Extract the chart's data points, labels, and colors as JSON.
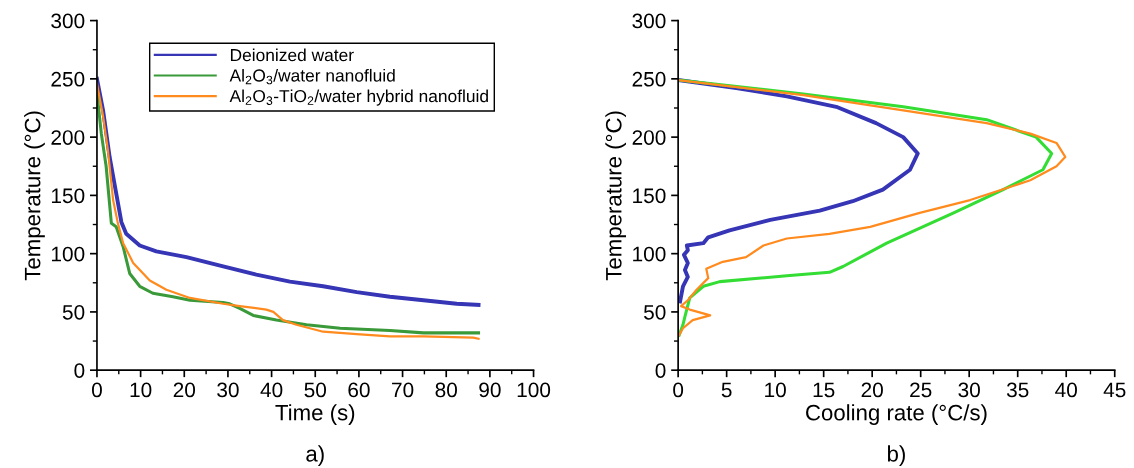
{
  "chart_data": [
    {
      "type": "line",
      "xlabel": "Time (s)",
      "ylabel": "Temperature (°C)",
      "annotations": [
        "a)"
      ],
      "xlim": [
        0,
        100
      ],
      "xticks": [
        0,
        10,
        20,
        30,
        40,
        50,
        60,
        70,
        80,
        90,
        100
      ],
      "ylim": [
        0,
        300
      ],
      "yticks": [
        0,
        50,
        100,
        150,
        200,
        250,
        300
      ],
      "legend": "top right",
      "grid": false,
      "series": [
        {
          "name": "Deionized water",
          "color": "#3535b5",
          "x": [
            0,
            1.4,
            2.9,
            4.4,
            5.6,
            6.7,
            9.8,
            13.6,
            20.5,
            28.9,
            36.5,
            44.2,
            51.8,
            59.5,
            67.1,
            74.8,
            82.4,
            87.4
          ],
          "values": [
            250,
            223,
            183,
            152,
            127,
            117,
            107,
            102,
            97,
            89,
            82,
            76,
            72,
            67,
            63,
            60,
            57,
            56
          ]
        },
        {
          "name": "Al$_{2}$O$_{3}$/water nanofluid",
          "color": "#3a9a3a",
          "x": [
            0,
            1,
            2.1,
            3.3,
            4.4,
            6,
            7.5,
            9.8,
            12.8,
            17.4,
            21.3,
            28.9,
            30.4,
            32.7,
            35.8,
            41.1,
            48,
            55.7,
            67.1,
            74.8,
            87.4
          ],
          "values": [
            238,
            203,
            175,
            126,
            123,
            106,
            83,
            72,
            66,
            63,
            60,
            58,
            57,
            53,
            47,
            43,
            39,
            36,
            34,
            32,
            32
          ]
        },
        {
          "name": "Al$_{2}$O$_{3}$-TiO$_{2}$/water hybrid nanofluid",
          "color": "#ff8a1e",
          "x": [
            0,
            1.4,
            2.5,
            3.7,
            4.8,
            6,
            8.3,
            12.1,
            15.9,
            21.3,
            28.9,
            32.7,
            38.8,
            40.4,
            42.6,
            45.7,
            51.8,
            59.5,
            67.1,
            74.8,
            86.2,
            87.4
          ],
          "values": [
            246,
            218,
            189,
            146,
            126,
            109,
            92,
            77,
            69,
            62,
            57,
            55,
            52,
            50,
            43,
            39,
            33,
            31,
            29,
            29,
            28,
            27
          ]
        }
      ]
    },
    {
      "type": "line",
      "xlabel": "Cooling rate (°C/s)",
      "ylabel": "Temperature (°C)",
      "annotations": [
        "b)"
      ],
      "xlim": [
        0,
        45
      ],
      "xticks": [
        0,
        5,
        10,
        15,
        20,
        25,
        30,
        35,
        40,
        45
      ],
      "ylim": [
        0,
        300
      ],
      "yticks": [
        0,
        50,
        100,
        150,
        200,
        250,
        300
      ],
      "grid": false,
      "series": [
        {
          "color": "#3535b5",
          "x": [
            0,
            6,
            11.2,
            16.3,
            20.4,
            23.2,
            24.7,
            23.9,
            21.1,
            18,
            14.6,
            9.5,
            5.3,
            3.1,
            2.6,
            0.9,
            1,
            0.6,
            1,
            0.7,
            1,
            0.5,
            0.2
          ],
          "values": [
            249,
            242,
            235,
            226,
            212,
            200,
            186,
            172,
            155,
            145,
            137,
            129,
            120,
            114,
            109,
            107,
            103,
            99,
            92,
            86,
            80,
            72,
            59
          ]
        },
        {
          "color": "#33dd33",
          "x": [
            0,
            12.9,
            23.2,
            31.8,
            36.9,
            38.5,
            37.6,
            33.5,
            28.4,
            21.5,
            17,
            15.6,
            11.2,
            4.3,
            2.6,
            1.2,
            0.7,
            0.5,
            0.1
          ],
          "values": [
            249,
            237,
            226,
            215,
            200,
            186,
            172,
            155,
            135,
            109,
            89,
            84,
            81,
            76,
            72,
            62,
            46,
            39,
            30
          ]
        },
        {
          "color": "#ff8a1e",
          "x": [
            0,
            12.9,
            23.2,
            31.8,
            36.3,
            39,
            39.9,
            39,
            36.3,
            30.1,
            24.9,
            19.8,
            15.6,
            11.2,
            8.8,
            7,
            4.6,
            2.9,
            3.1,
            1.9,
            1,
            0.3,
            1.2,
            3.3,
            1.5,
            0.5,
            0.1
          ],
          "values": [
            249,
            236,
            223,
            212,
            203,
            195,
            183,
            175,
            163,
            146,
            135,
            123,
            117,
            113,
            107,
            97,
            93,
            87,
            79,
            69,
            60,
            55,
            52,
            47,
            43,
            36,
            30
          ]
        }
      ]
    }
  ]
}
